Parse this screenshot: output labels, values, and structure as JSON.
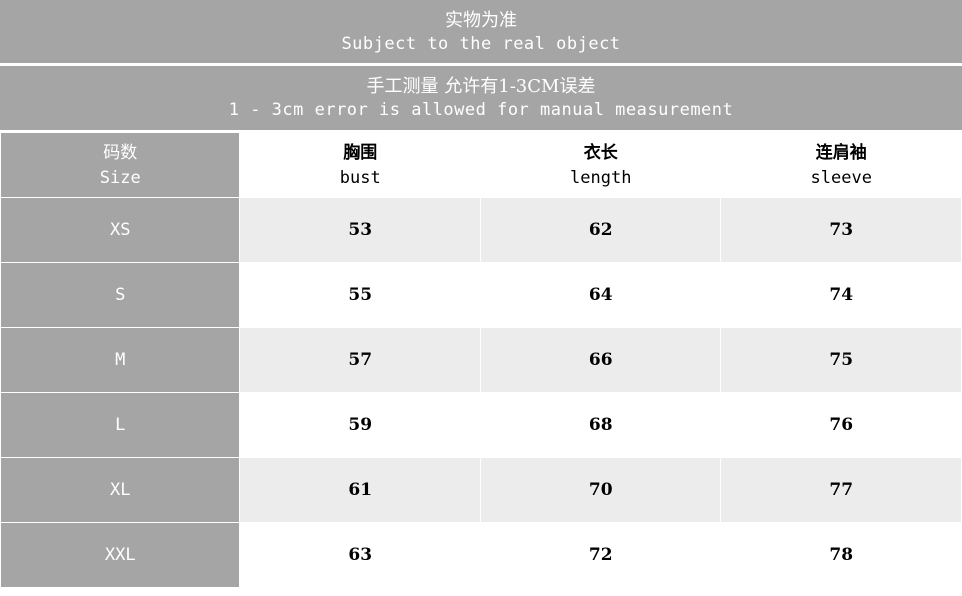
{
  "notice": {
    "line1_cn": "实物为准",
    "line1_en": "Subject to the real object",
    "line2_cn": "手工测量 允许有1-3CM误差",
    "line2_en": "1 - 3cm error is allowed for manual measurement"
  },
  "headers": [
    {
      "cn": "码数",
      "en": "Size"
    },
    {
      "cn": "胸围",
      "en": "bust"
    },
    {
      "cn": "衣长",
      "en": "length"
    },
    {
      "cn": "连肩袖",
      "en": "sleeve"
    }
  ],
  "rows": [
    {
      "size": "XS",
      "bust": "53",
      "length": "62",
      "sleeve": "73"
    },
    {
      "size": "S",
      "bust": "55",
      "length": "64",
      "sleeve": "74"
    },
    {
      "size": "M",
      "bust": "57",
      "length": "66",
      "sleeve": "75"
    },
    {
      "size": "L",
      "bust": "59",
      "length": "68",
      "sleeve": "76"
    },
    {
      "size": "XL",
      "bust": "61",
      "length": "70",
      "sleeve": "77"
    },
    {
      "size": "XXL",
      "bust": "63",
      "length": "72",
      "sleeve": "78"
    }
  ],
  "colors": {
    "header_gray": "#a5a5a5",
    "stripe": "#ececec"
  }
}
